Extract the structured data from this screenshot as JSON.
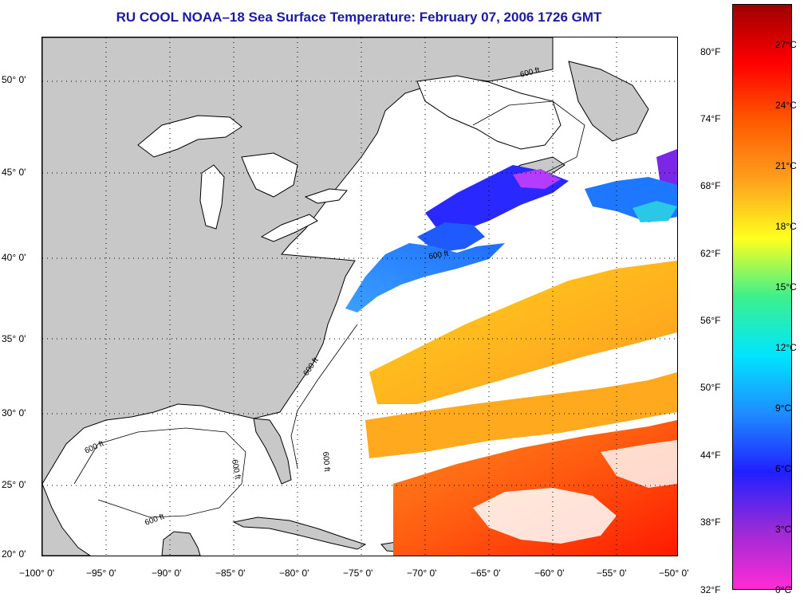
{
  "title": "RU COOL  NOAA–18  Sea Surface Temperature:  February 07, 2006 1726 GMT",
  "map": {
    "lat_labels": [
      "50° 0'",
      "45° 0'",
      "40° 0'",
      "35° 0'",
      "30° 0'",
      "25° 0'",
      "20° 0'"
    ],
    "lon_labels": [
      "−100° 0'",
      "−95° 0'",
      "−90° 0'",
      "−85° 0'",
      "−80° 0'",
      "−75° 0'",
      "−70° 0'",
      "−65° 0'",
      "−60° 0'",
      "−55° 0'",
      "−50° 0'"
    ],
    "isobath_label": "600 ft",
    "colors": {
      "land": "#c8c8c8",
      "ocean_no_data": "#ffffff",
      "coastline": "#000000",
      "grid": "#000000"
    }
  },
  "colorbar": {
    "fahrenheit_labels": [
      "80°F",
      "74°F",
      "68°F",
      "62°F",
      "56°F",
      "50°F",
      "44°F",
      "38°F",
      "32°F"
    ],
    "celsius_labels": [
      "27°C",
      "24°C",
      "21°C",
      "18°C",
      "15°C",
      "12°C",
      "9°C",
      "6°C",
      "3°C",
      "0°C"
    ],
    "range_celsius": [
      0,
      28.5
    ],
    "gradient_stops": [
      "#ff2bd6",
      "#9a2bd6",
      "#2020ff",
      "#1e8cff",
      "#00e5ff",
      "#3cf08c",
      "#ffff1e",
      "#ffa01e",
      "#ff5a00",
      "#ff0000",
      "#9e0000"
    ]
  }
}
